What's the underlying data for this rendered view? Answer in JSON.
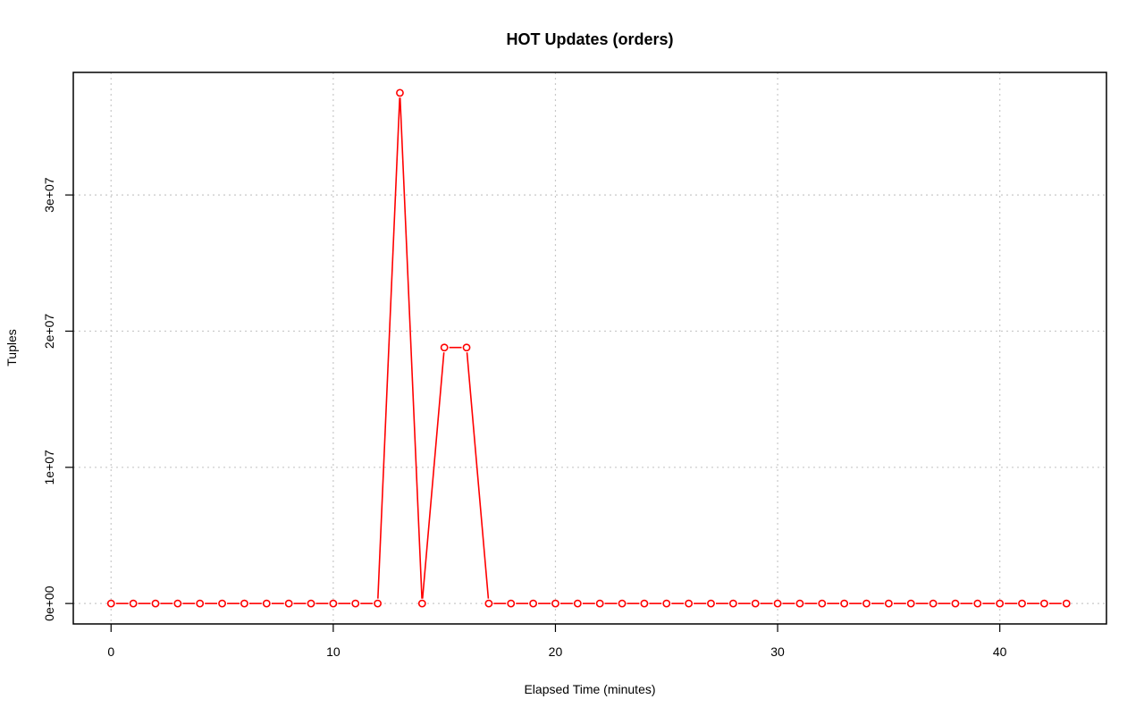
{
  "chart_data": {
    "type": "line",
    "title": "HOT Updates (orders)",
    "xlabel": "Elapsed Time (minutes)",
    "ylabel": "Tuples",
    "xlim": [
      -1.7,
      44.8
    ],
    "ylim": [
      -1500000,
      39000000
    ],
    "xticks": [
      0,
      10,
      20,
      30,
      40
    ],
    "xtick_labels": [
      "0",
      "10",
      "20",
      "30",
      "40"
    ],
    "yticks": [
      0,
      10000000,
      20000000,
      30000000
    ],
    "ytick_labels": [
      "0e+00",
      "1e+07",
      "2e+07",
      "3e+07"
    ],
    "grid": true,
    "series": [
      {
        "color": "#ff0000",
        "x": [
          0,
          1,
          2,
          3,
          4,
          5,
          6,
          7,
          8,
          9,
          10,
          11,
          12,
          13,
          14,
          15,
          16,
          17,
          18,
          19,
          20,
          21,
          22,
          23,
          24,
          25,
          26,
          27,
          28,
          29,
          30,
          31,
          32,
          33,
          34,
          35,
          36,
          37,
          38,
          39,
          40,
          41,
          42,
          43
        ],
        "y": [
          0,
          0,
          0,
          0,
          0,
          0,
          0,
          0,
          0,
          0,
          0,
          0,
          0,
          37500000,
          0,
          18800000,
          18800000,
          0,
          0,
          0,
          0,
          0,
          0,
          0,
          0,
          0,
          0,
          0,
          0,
          0,
          0,
          0,
          0,
          0,
          0,
          0,
          0,
          0,
          0,
          0,
          0,
          0,
          0,
          0
        ]
      }
    ]
  }
}
